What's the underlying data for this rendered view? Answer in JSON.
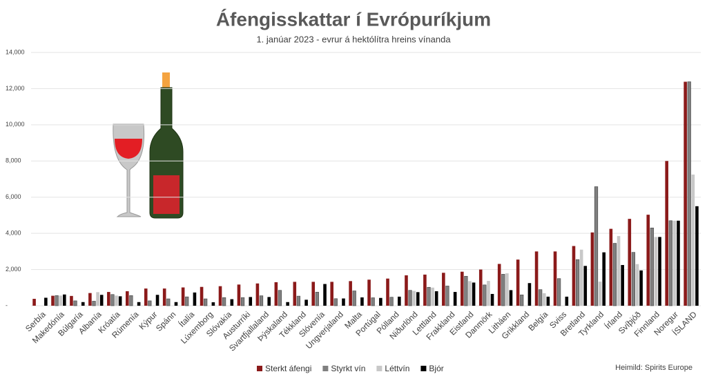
{
  "chart_data": {
    "type": "bar",
    "title": "Áfengisskattar í Evrópuríkjum",
    "subtitle": "1. janúar 2023 - evrur á hektólítra hreins vínanda",
    "source": "Heimild: Spirits Europe",
    "categories": [
      "Serbía",
      "Makedónía",
      "Búlgaría",
      "Albanía",
      "Króatía",
      "Rúmenía",
      "Kýpur",
      "Spánn",
      "Ítalía",
      "Lúxemborg",
      "Slóvakía",
      "Austurríki",
      "Svartfjallaland",
      "Þýskaland",
      "Tékkland",
      "Slóvenía",
      "Ungverjaland",
      "Malta",
      "Portúgal",
      "Pólland",
      "Niðurlönd",
      "Lettland",
      "Frakkland",
      "Eistland",
      "Danmörk",
      "Litháen",
      "Grikkland",
      "Belgía",
      "Sviss",
      "Bretland",
      "Tyrkland",
      "Írland",
      "Svíþjóð",
      "Finnland",
      "Noregur",
      "ÍSLAND"
    ],
    "series": [
      {
        "name": "Sterkt áfengi",
        "color": "#8b1a1a",
        "values": [
          380,
          550,
          540,
          700,
          760,
          800,
          950,
          950,
          1010,
          1040,
          1080,
          1170,
          1230,
          1300,
          1320,
          1320,
          1320,
          1360,
          1440,
          1500,
          1680,
          1720,
          1820,
          1880,
          2000,
          2310,
          2550,
          3000,
          3000,
          3300,
          4050,
          4250,
          4800,
          5030,
          8000,
          12380
        ]
      },
      {
        "name": "Styrkt vín",
        "color": "#808080",
        "values": [
          0,
          560,
          270,
          250,
          620,
          560,
          270,
          380,
          490,
          380,
          450,
          450,
          550,
          850,
          530,
          750,
          390,
          820,
          440,
          470,
          850,
          1020,
          1090,
          1630,
          1150,
          1740,
          600,
          890,
          1500,
          2550,
          6580,
          3450,
          2950,
          4300,
          4700,
          12380
        ]
      },
      {
        "name": "Léttvín",
        "color": "#c8c8c8",
        "values": [
          0,
          560,
          0,
          750,
          560,
          0,
          0,
          0,
          0,
          0,
          0,
          0,
          0,
          0,
          0,
          0,
          0,
          0,
          0,
          0,
          820,
          1000,
          0,
          1360,
          1370,
          1790,
          0,
          690,
          0,
          3100,
          1330,
          3850,
          2300,
          3800,
          4700,
          7250
        ]
      },
      {
        "name": "Bjór",
        "color": "#000000",
        "values": [
          440,
          620,
          200,
          600,
          520,
          200,
          600,
          200,
          730,
          190,
          360,
          480,
          480,
          200,
          330,
          1200,
          400,
          460,
          430,
          500,
          750,
          800,
          760,
          1280,
          650,
          860,
          1250,
          500,
          500,
          2200,
          2950,
          2250,
          1950,
          3800,
          4700,
          5500
        ]
      }
    ],
    "ylim": [
      0,
      14000
    ],
    "yticks": [
      {
        "value": 0,
        "label": "-"
      },
      {
        "value": 2000,
        "label": "2,000"
      },
      {
        "value": 4000,
        "label": "4,000"
      },
      {
        "value": 6000,
        "label": "6,000"
      },
      {
        "value": 8000,
        "label": "8,000"
      },
      {
        "value": 10000,
        "label": "10,000"
      },
      {
        "value": 12000,
        "label": "12,000"
      },
      {
        "value": 14000,
        "label": "14,000"
      }
    ],
    "grid": true
  }
}
